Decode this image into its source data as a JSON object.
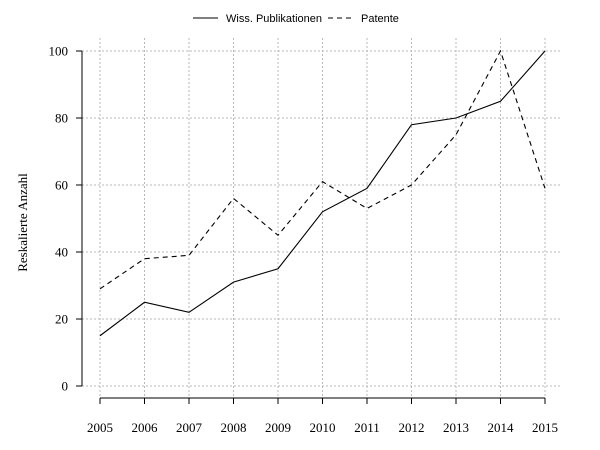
{
  "chart_data": {
    "type": "line",
    "title": "",
    "xlabel": "",
    "ylabel": "Reskalierte Anzahl",
    "x": [
      2005,
      2006,
      2007,
      2008,
      2009,
      2010,
      2011,
      2012,
      2013,
      2014,
      2015
    ],
    "xticks": [
      "2005",
      "2006",
      "2007",
      "2008",
      "2009",
      "2010",
      "2011",
      "2012",
      "2013",
      "2014",
      "2015"
    ],
    "yticks": [
      "0",
      "20",
      "40",
      "60",
      "80",
      "100"
    ],
    "xlim": [
      2005,
      2015
    ],
    "ylim": [
      0,
      100
    ],
    "grid": true,
    "legend_position": "top-center",
    "series": [
      {
        "name": "Wiss. Publikationen",
        "style": "solid",
        "color": "#000000",
        "values": [
          15,
          25,
          22,
          31,
          35,
          52,
          59,
          78,
          80,
          85,
          100
        ]
      },
      {
        "name": "Patente",
        "style": "dashed",
        "color": "#000000",
        "values": [
          29,
          38,
          39,
          56,
          45,
          61,
          53,
          60,
          75,
          100,
          59
        ]
      }
    ]
  }
}
